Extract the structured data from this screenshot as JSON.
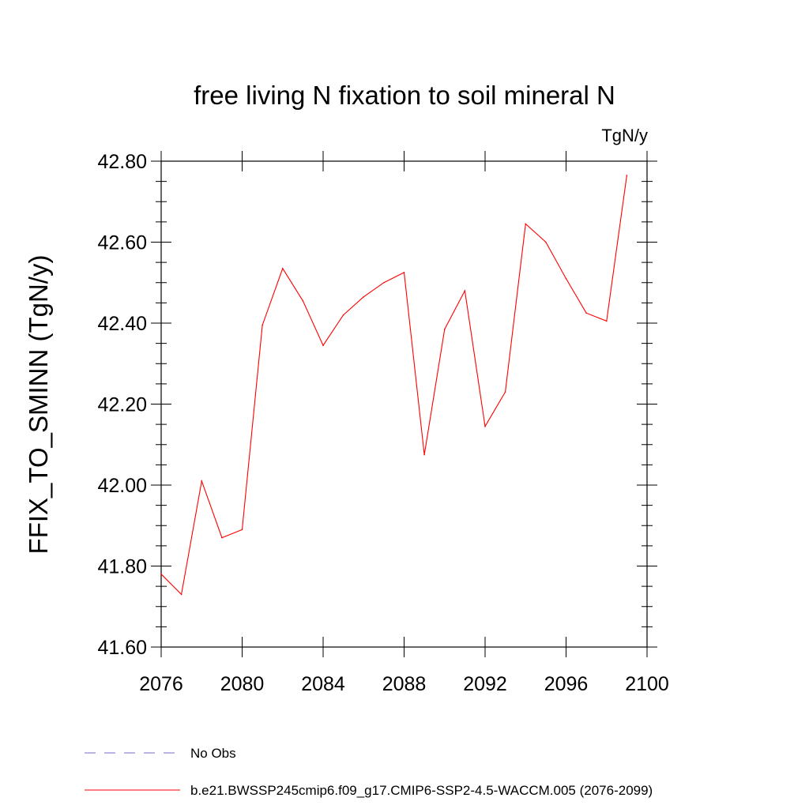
{
  "chart_data": {
    "type": "line",
    "title": "free living N fixation to soil mineral N",
    "units": "TgN/y",
    "ylabel": "FFIX_TO_SMINN  (TgN/y)",
    "xlabel": "",
    "xlim": [
      2076,
      2100
    ],
    "ylim": [
      41.6,
      42.8
    ],
    "xticks": [
      2076,
      2080,
      2084,
      2088,
      2092,
      2096,
      2100
    ],
    "yticks": [
      41.6,
      41.8,
      42.0,
      42.2,
      42.4,
      42.6,
      42.8
    ],
    "xtick_labels": [
      "2076",
      "2080",
      "2084",
      "2088",
      "2092",
      "2096",
      "2100"
    ],
    "ytick_labels": [
      "41.60",
      "41.80",
      "42.00",
      "42.20",
      "42.40",
      "42.60",
      "42.80"
    ],
    "grid": false,
    "legend_position": "bottom",
    "series": [
      {
        "name": "b.e21.BWSSP245cmip6.f09_g17.CMIP6-SSP2-4.5-WACCM.005 (2076-2099)",
        "color": "#ff0000",
        "style": "solid",
        "x": [
          2076,
          2077,
          2078,
          2079,
          2080,
          2081,
          2082,
          2083,
          2084,
          2085,
          2086,
          2087,
          2088,
          2089,
          2090,
          2091,
          2092,
          2093,
          2094,
          2095,
          2096,
          2097,
          2098,
          2099
        ],
        "y": [
          41.78,
          41.73,
          42.01,
          41.87,
          41.89,
          42.395,
          42.535,
          42.455,
          42.345,
          42.42,
          42.465,
          42.5,
          42.525,
          42.075,
          42.385,
          42.48,
          42.145,
          42.23,
          42.645,
          42.6,
          42.51,
          42.425,
          42.405,
          42.765
        ]
      },
      {
        "name": "No Obs",
        "color": "#7b68c8",
        "style": "dashed",
        "x": [],
        "y": []
      }
    ]
  }
}
